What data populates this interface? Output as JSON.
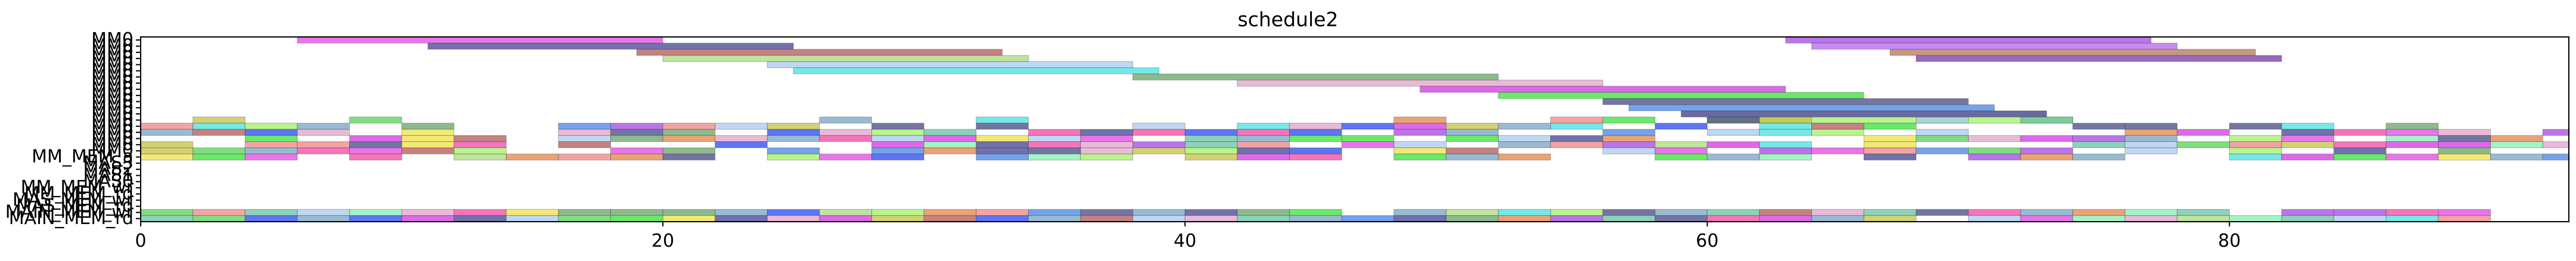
{
  "chart_data": {
    "type": "gantt",
    "title": "schedule2",
    "xlabel": "",
    "ylabel": "",
    "xlim": [
      0,
      93
    ],
    "x_ticks": [
      0,
      20,
      40,
      60,
      80
    ],
    "grid": false,
    "legend": "none",
    "y_tick_labels": [
      "MAIN_MEM_rd",
      "MAIN_MEM_wr",
      "MAS_MEM_rd",
      "MAS_MEM_wr",
      "MM_MEM_rd",
      "MM_MEM_wr",
      "MAS0",
      "MAS1",
      "MAS2",
      "MAS3",
      "MM_MEM_a",
      "MM0",
      "MM0",
      "MM0",
      "MM0",
      "MM0",
      "MM0",
      "MM0",
      "MM0",
      "MM0",
      "MM0",
      "MM0",
      "MM0",
      "MM0",
      "MM0",
      "MM0",
      "MM0",
      "MM0",
      "MM0",
      "MM0"
    ],
    "tasks": [
      {
        "row": 29,
        "start": 6.0,
        "end": 20.0,
        "color": "#e040e0"
      },
      {
        "row": 28,
        "start": 11.0,
        "end": 25.0,
        "color": "#3a3a8a"
      },
      {
        "row": 27,
        "start": 19.0,
        "end": 33.0,
        "color": "#b05050"
      },
      {
        "row": 26,
        "start": 20.0,
        "end": 34.0,
        "color": "#a8d878"
      },
      {
        "row": 25,
        "start": 24.0,
        "end": 38.0,
        "color": "#a8c8f0"
      },
      {
        "row": 24,
        "start": 25.0,
        "end": 39.0,
        "color": "#40e0e0"
      },
      {
        "row": 23,
        "start": 38.0,
        "end": 52.0,
        "color": "#60a060"
      },
      {
        "row": 22,
        "start": 42.0,
        "end": 56.0,
        "color": "#e0a0c8"
      },
      {
        "row": 21,
        "start": 49.0,
        "end": 63.0,
        "color": "#d030e0"
      },
      {
        "row": 20,
        "start": 52.0,
        "end": 66.0,
        "color": "#30e030"
      },
      {
        "row": 19,
        "start": 56.0,
        "end": 70.0,
        "color": "#404080"
      },
      {
        "row": 18,
        "start": 57.0,
        "end": 71.0,
        "color": "#4080e0"
      },
      {
        "row": 17,
        "start": 59.0,
        "end": 73.0,
        "color": "#303080"
      },
      {
        "row": 16,
        "start": 60.0,
        "end": 74.0,
        "color": "#a0f060"
      },
      {
        "row": 29,
        "start": 63.0,
        "end": 77.0,
        "color": "#a040e0"
      },
      {
        "row": 28,
        "start": 64.0,
        "end": 78.0,
        "color": "#b060f0"
      },
      {
        "row": 27,
        "start": 67.0,
        "end": 81.0,
        "color": "#b07050"
      },
      {
        "row": 26,
        "start": 68.0,
        "end": 82.0,
        "color": "#7030a0"
      }
    ],
    "bands": [
      {
        "row": 16,
        "seed": 3,
        "start": 0,
        "end": 74,
        "density": 0.3
      },
      {
        "row": 15,
        "seed": 7,
        "start": 0,
        "end": 93,
        "density": 0.55
      },
      {
        "row": 14,
        "seed": 11,
        "start": 0,
        "end": 93,
        "density": 0.65
      },
      {
        "row": 13,
        "seed": 17,
        "start": 0,
        "end": 93,
        "density": 0.75
      },
      {
        "row": 12,
        "seed": 23,
        "start": 0,
        "end": 93,
        "density": 0.75
      },
      {
        "row": 11,
        "seed": 29,
        "start": 0,
        "end": 93,
        "density": 0.75
      },
      {
        "row": 10,
        "seed": 31,
        "start": 0,
        "end": 93,
        "density": 0.75
      },
      {
        "row": 5,
        "seed": 37,
        "start": 0,
        "end": 90,
        "density": 0.0
      },
      {
        "row": 1,
        "seed": 41,
        "start": 0,
        "end": 90,
        "density": 0.95
      },
      {
        "row": 0,
        "seed": 43,
        "start": 0,
        "end": 90,
        "density": 0.95
      }
    ]
  }
}
